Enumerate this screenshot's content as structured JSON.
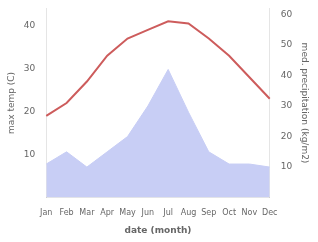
{
  "chart_data": {
    "type": "line",
    "categories": [
      "Jan",
      "Feb",
      "Mar",
      "Apr",
      "May",
      "Jun",
      "Jul",
      "Aug",
      "Sep",
      "Oct",
      "Nov",
      "Dec"
    ],
    "series": [
      {
        "type": "line",
        "color": "#cd5c5c",
        "values": [
          19,
          22,
          27,
          33,
          37,
          39,
          41,
          40.5,
          37,
          33,
          28,
          23
        ]
      },
      {
        "type": "area",
        "color": "#c8cef5",
        "axis": "y2",
        "values": [
          11,
          15,
          10,
          15,
          20,
          30,
          42,
          28,
          15,
          11,
          11,
          10
        ]
      }
    ],
    "xlabel": "date (month)",
    "ylabel": "max temp (C)",
    "y2label": "med. precipitation (kg/m2)",
    "ylim": [
      0,
      44
    ],
    "yticks": [
      10,
      20,
      30,
      40
    ],
    "y2lim": [
      0,
      62
    ],
    "y2ticks": [
      10,
      20,
      30,
      40,
      50,
      60
    ],
    "grid": false
  }
}
